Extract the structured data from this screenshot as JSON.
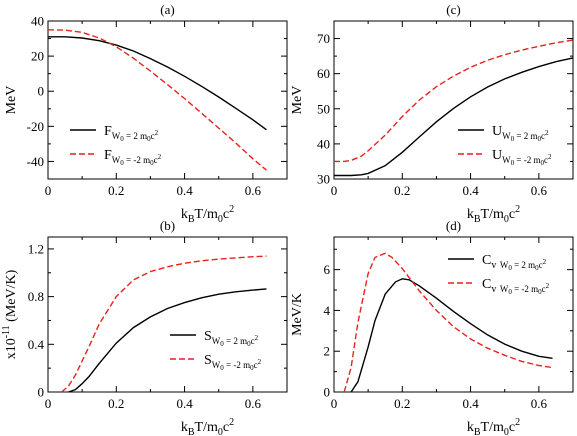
{
  "chart_data": [
    {
      "type": "line",
      "panel_label": "(a)",
      "ylabel": "MeV",
      "xlabel_main": "k",
      "xlabel_sub1": "B",
      "xlabel_mid": "T/m",
      "xlabel_sub2": "0",
      "xlabel_tail": "c",
      "xlabel_sup": "2",
      "xlim": [
        0,
        0.7
      ],
      "ylim": [
        -50,
        40
      ],
      "xticks": [
        0,
        0.2,
        0.4,
        0.6
      ],
      "xtick_labels": [
        "0",
        "0.2",
        "0.4",
        "0.6"
      ],
      "yticks": [
        -40,
        -20,
        0,
        20,
        40
      ],
      "ytick_labels": [
        "-40",
        "-20",
        "0",
        "20",
        "40"
      ],
      "legend_position": "lower-left",
      "series": [
        {
          "name": "F",
          "legend_sub": "W",
          "legend_subsub": "0",
          "legend_eq": " = 2 m",
          "legend_eqsub": "0",
          "legend_c": "c",
          "legend_sup": "2",
          "color": "#000000",
          "dash": "",
          "x": [
            0,
            0.05,
            0.1,
            0.15,
            0.2,
            0.25,
            0.3,
            0.35,
            0.4,
            0.45,
            0.5,
            0.55,
            0.6,
            0.64
          ],
          "y": [
            31,
            31,
            30.3,
            28.8,
            26.3,
            22.9,
            18.6,
            13.8,
            8.5,
            2.8,
            -3.3,
            -9.7,
            -16.3,
            -22
          ]
        },
        {
          "name": "F",
          "legend_sub": "W",
          "legend_subsub": "0",
          "legend_eq": " = -2 m",
          "legend_eqsub": "0",
          "legend_c": "c",
          "legend_sup": "2",
          "color": "#e8211c",
          "dash": "6,3",
          "x": [
            0,
            0.05,
            0.1,
            0.15,
            0.2,
            0.25,
            0.3,
            0.35,
            0.4,
            0.45,
            0.5,
            0.55,
            0.6,
            0.64
          ],
          "y": [
            35,
            34.8,
            33.5,
            30.3,
            25.3,
            18.8,
            11.5,
            3.8,
            -4.2,
            -12.5,
            -21,
            -29.5,
            -38.5,
            -45
          ]
        }
      ]
    },
    {
      "type": "line",
      "panel_label": "(b)",
      "ylabel_pre": "x10",
      "ylabel_sup": "-11",
      "ylabel_post": " (MeV/K)",
      "xlabel_main": "k",
      "xlabel_sub1": "B",
      "xlabel_mid": "T/m",
      "xlabel_sub2": "0",
      "xlabel_tail": "c",
      "xlabel_sup": "2",
      "xlim": [
        0,
        0.7
      ],
      "ylim": [
        0,
        1.3
      ],
      "xticks": [
        0,
        0.2,
        0.4,
        0.6
      ],
      "xtick_labels": [
        "0",
        "0.2",
        "0.4",
        "0.6"
      ],
      "yticks": [
        0,
        0.4,
        0.8,
        1.2
      ],
      "ytick_labels": [
        "0",
        "0.4",
        "0.8",
        "1.2"
      ],
      "legend_position": "lower-right",
      "series": [
        {
          "name": "S",
          "legend_sub": "W",
          "legend_subsub": "0",
          "legend_eq": " = 2 m",
          "legend_eqsub": "0",
          "legend_c": "c",
          "legend_sup": "2",
          "color": "#000000",
          "dash": "",
          "x": [
            0.06,
            0.08,
            0.1,
            0.12,
            0.15,
            0.2,
            0.25,
            0.3,
            0.35,
            0.4,
            0.45,
            0.5,
            0.55,
            0.6,
            0.64
          ],
          "y": [
            0,
            0.02,
            0.07,
            0.13,
            0.24,
            0.41,
            0.54,
            0.63,
            0.7,
            0.75,
            0.79,
            0.82,
            0.84,
            0.855,
            0.865
          ]
        },
        {
          "name": "S",
          "legend_sub": "W",
          "legend_subsub": "0",
          "legend_eq": " = -2 m",
          "legend_eqsub": "0",
          "legend_c": "c",
          "legend_sup": "2",
          "color": "#e8211c",
          "dash": "6,3",
          "x": [
            0.04,
            0.06,
            0.08,
            0.1,
            0.12,
            0.15,
            0.2,
            0.25,
            0.3,
            0.35,
            0.4,
            0.45,
            0.5,
            0.55,
            0.6,
            0.64
          ],
          "y": [
            0,
            0.05,
            0.14,
            0.26,
            0.38,
            0.57,
            0.8,
            0.94,
            1.01,
            1.05,
            1.08,
            1.1,
            1.115,
            1.125,
            1.135,
            1.14
          ]
        }
      ]
    },
    {
      "type": "line",
      "panel_label": "(c)",
      "ylabel": "MeV",
      "xlabel_main": "k",
      "xlabel_sub1": "B",
      "xlabel_mid": "T/m",
      "xlabel_sub2": "0",
      "xlabel_tail": "c",
      "xlabel_sup": "2",
      "xlim": [
        0,
        0.7
      ],
      "ylim": [
        30,
        75
      ],
      "xticks": [
        0,
        0.2,
        0.4,
        0.6
      ],
      "xtick_labels": [
        "0",
        "0.2",
        "0.4",
        "0.6"
      ],
      "yticks": [
        30,
        40,
        50,
        60,
        70
      ],
      "ytick_labels": [
        "30",
        "40",
        "50",
        "60",
        "70"
      ],
      "legend_position": "lower-right",
      "series": [
        {
          "name": "U",
          "legend_sub": "W",
          "legend_subsub": "0",
          "legend_eq": " = 2 m",
          "legend_eqsub": "0",
          "legend_c": "c",
          "legend_sup": "2",
          "color": "#000000",
          "dash": "",
          "x": [
            0,
            0.05,
            0.08,
            0.1,
            0.15,
            0.2,
            0.25,
            0.3,
            0.35,
            0.4,
            0.45,
            0.5,
            0.55,
            0.6,
            0.65,
            0.7
          ],
          "y": [
            31,
            31,
            31.2,
            31.6,
            33.8,
            37.6,
            42,
            46.3,
            50.1,
            53.4,
            56.2,
            58.5,
            60.4,
            62,
            63.4,
            64.5
          ]
        },
        {
          "name": "U",
          "legend_sub": "W",
          "legend_subsub": "0",
          "legend_eq": " = -2 m",
          "legend_eqsub": "0",
          "legend_c": "c",
          "legend_sup": "2",
          "color": "#e8211c",
          "dash": "6,3",
          "x": [
            0,
            0.03,
            0.05,
            0.08,
            0.1,
            0.15,
            0.2,
            0.25,
            0.3,
            0.35,
            0.4,
            0.45,
            0.5,
            0.55,
            0.6,
            0.65,
            0.7
          ],
          "y": [
            35,
            35,
            35.3,
            36.5,
            38,
            42.5,
            47.8,
            52.5,
            56.3,
            59.3,
            61.8,
            63.8,
            65.4,
            66.7,
            67.8,
            68.8,
            69.6
          ]
        }
      ]
    },
    {
      "type": "line",
      "panel_label": "(d)",
      "ylabel": "MeV/K",
      "xlabel_main": "k",
      "xlabel_sub1": "B",
      "xlabel_mid": "T/m",
      "xlabel_sub2": "0",
      "xlabel_tail": "c",
      "xlabel_sup": "2",
      "xlim": [
        0,
        0.7
      ],
      "ylim": [
        0,
        7.6
      ],
      "xticks": [
        0,
        0.2,
        0.4,
        0.6
      ],
      "xtick_labels": [
        "0",
        "0.2",
        "0.4",
        "0.6"
      ],
      "yticks": [
        0,
        2,
        4,
        6
      ],
      "ytick_labels": [
        "0",
        "2",
        "4",
        "6"
      ],
      "legend_position": "top-right",
      "series": [
        {
          "name": "C",
          "name_sub": "v",
          "legend_sub": "W",
          "legend_subsub": "0",
          "legend_eq": " = 2 m",
          "legend_eqsub": "0",
          "legend_c": "c",
          "legend_sup": "2",
          "color": "#000000",
          "dash": "",
          "x": [
            0.05,
            0.07,
            0.1,
            0.12,
            0.15,
            0.18,
            0.2,
            0.22,
            0.25,
            0.3,
            0.35,
            0.4,
            0.45,
            0.5,
            0.55,
            0.6,
            0.64
          ],
          "y": [
            0,
            0.5,
            2.2,
            3.5,
            4.8,
            5.4,
            5.55,
            5.5,
            5.2,
            4.6,
            3.95,
            3.35,
            2.8,
            2.35,
            2,
            1.75,
            1.65
          ]
        },
        {
          "name": "C",
          "name_sub": "v",
          "legend_sub": "W",
          "legend_subsub": "0",
          "legend_eq": " = -2 m",
          "legend_eqsub": "0",
          "legend_c": "c",
          "legend_sup": "2",
          "color": "#e8211c",
          "dash": "6,3",
          "x": [
            0.03,
            0.05,
            0.07,
            0.1,
            0.12,
            0.15,
            0.17,
            0.2,
            0.25,
            0.3,
            0.35,
            0.4,
            0.45,
            0.5,
            0.55,
            0.6,
            0.64
          ],
          "y": [
            0,
            1.2,
            3.4,
            5.8,
            6.6,
            6.8,
            6.6,
            6.05,
            4.95,
            4,
            3.2,
            2.6,
            2.15,
            1.8,
            1.5,
            1.3,
            1.2
          ]
        }
      ]
    }
  ]
}
